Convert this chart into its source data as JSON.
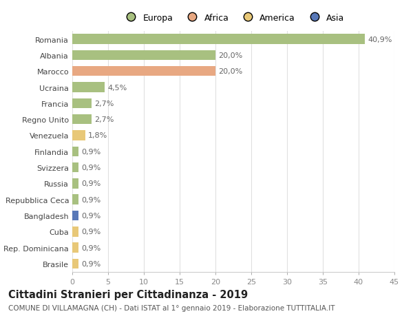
{
  "categories": [
    "Romania",
    "Albania",
    "Marocco",
    "Ucraina",
    "Francia",
    "Regno Unito",
    "Venezuela",
    "Finlandia",
    "Svizzera",
    "Russia",
    "Repubblica Ceca",
    "Bangladesh",
    "Cuba",
    "Rep. Dominicana",
    "Brasile"
  ],
  "values": [
    40.9,
    20.0,
    20.0,
    4.5,
    2.7,
    2.7,
    1.8,
    0.9,
    0.9,
    0.9,
    0.9,
    0.9,
    0.9,
    0.9,
    0.9
  ],
  "labels": [
    "40,9%",
    "20,0%",
    "20,0%",
    "4,5%",
    "2,7%",
    "2,7%",
    "1,8%",
    "0,9%",
    "0,9%",
    "0,9%",
    "0,9%",
    "0,9%",
    "0,9%",
    "0,9%",
    "0,9%"
  ],
  "colors": [
    "#a8c080",
    "#a8c080",
    "#e8a882",
    "#a8c080",
    "#a8c080",
    "#a8c080",
    "#e8c878",
    "#a8c080",
    "#a8c080",
    "#a8c080",
    "#a8c080",
    "#5878b8",
    "#e8c878",
    "#e8c878",
    "#e8c878"
  ],
  "legend_labels": [
    "Europa",
    "Africa",
    "America",
    "Asia"
  ],
  "legend_colors": [
    "#a8c080",
    "#e8a882",
    "#e8c878",
    "#5878b8"
  ],
  "title": "Cittadini Stranieri per Cittadinanza - 2019",
  "subtitle": "COMUNE DI VILLAMAGNA (CH) - Dati ISTAT al 1° gennaio 2019 - Elaborazione TUTTITALIA.IT",
  "xlim": [
    0,
    45
  ],
  "xticks": [
    0,
    5,
    10,
    15,
    20,
    25,
    30,
    35,
    40,
    45
  ],
  "bg_color": "#ffffff",
  "grid_color": "#e0e0e0",
  "bar_height": 0.62,
  "label_fontsize": 8.0,
  "tick_fontsize": 8.0,
  "ytick_fontsize": 8.0,
  "title_fontsize": 10.5,
  "subtitle_fontsize": 7.5
}
